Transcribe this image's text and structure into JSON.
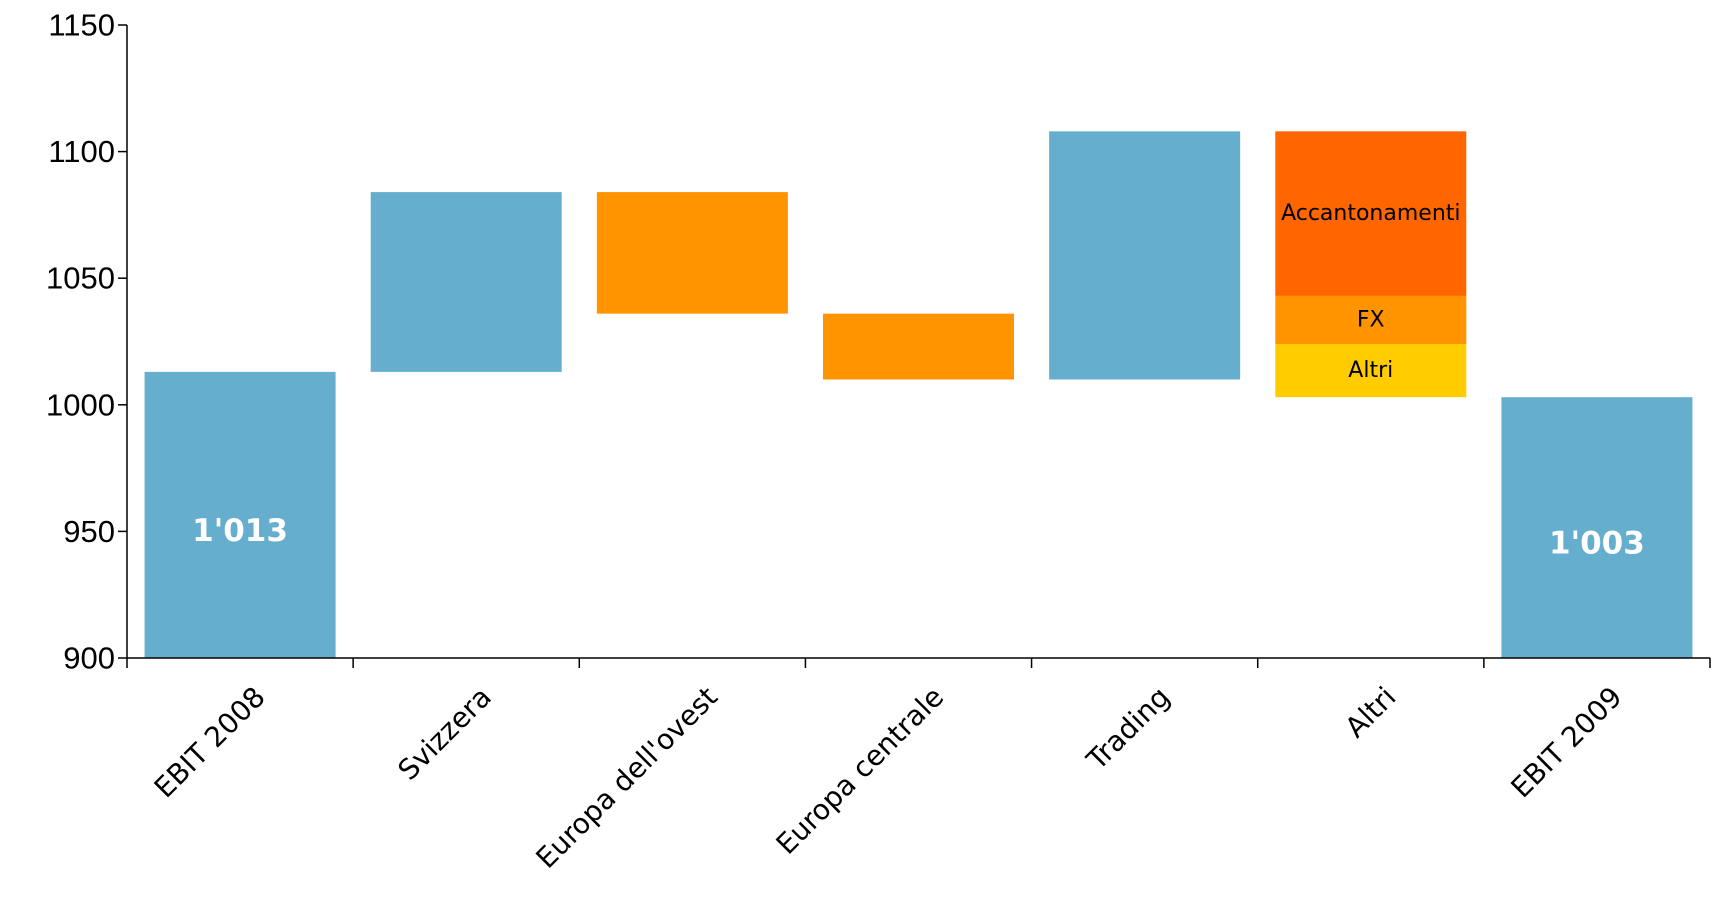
{
  "chart_data": {
    "type": "bar",
    "subtype": "waterfall",
    "title": "",
    "xlabel": "",
    "ylabel": "",
    "ylim": [
      900,
      1150
    ],
    "yticks": [
      900,
      950,
      1000,
      1050,
      1100,
      1150
    ],
    "grid": false,
    "categories": [
      "EBIT 2008",
      "Svizzera",
      "Europa dell'ovest",
      "Europa centrale",
      "Trading",
      "Altri",
      "EBIT 2009"
    ],
    "bars": [
      {
        "category": "EBIT 2008",
        "kind": "total",
        "segments": [
          {
            "from": 900,
            "to": 1013,
            "color": "#65aecd",
            "label": ""
          }
        ],
        "data_label": "1'013"
      },
      {
        "category": "Svizzera",
        "kind": "increase",
        "segments": [
          {
            "from": 1013,
            "to": 1084,
            "color": "#65aecd",
            "label": ""
          }
        ],
        "data_label": ""
      },
      {
        "category": "Europa dell'ovest",
        "kind": "decrease",
        "segments": [
          {
            "from": 1084,
            "to": 1036,
            "color": "#ff9300",
            "label": ""
          }
        ],
        "data_label": ""
      },
      {
        "category": "Europa centrale",
        "kind": "decrease",
        "segments": [
          {
            "from": 1036,
            "to": 1010,
            "color": "#ff9300",
            "label": ""
          }
        ],
        "data_label": ""
      },
      {
        "category": "Trading",
        "kind": "increase",
        "segments": [
          {
            "from": 1010,
            "to": 1108,
            "color": "#65aecd",
            "label": ""
          }
        ],
        "data_label": ""
      },
      {
        "category": "Altri",
        "kind": "decrease",
        "segments": [
          {
            "from": 1108,
            "to": 1043,
            "color": "#ff6600",
            "label": "Accantonamenti"
          },
          {
            "from": 1043,
            "to": 1024,
            "color": "#ff9300",
            "label": "FX"
          },
          {
            "from": 1024,
            "to": 1003,
            "color": "#ffcc00",
            "label": "Altri"
          }
        ],
        "data_label": ""
      },
      {
        "category": "EBIT 2009",
        "kind": "total",
        "segments": [
          {
            "from": 900,
            "to": 1003,
            "color": "#65aecd",
            "label": ""
          }
        ],
        "data_label": "1'003"
      }
    ]
  }
}
